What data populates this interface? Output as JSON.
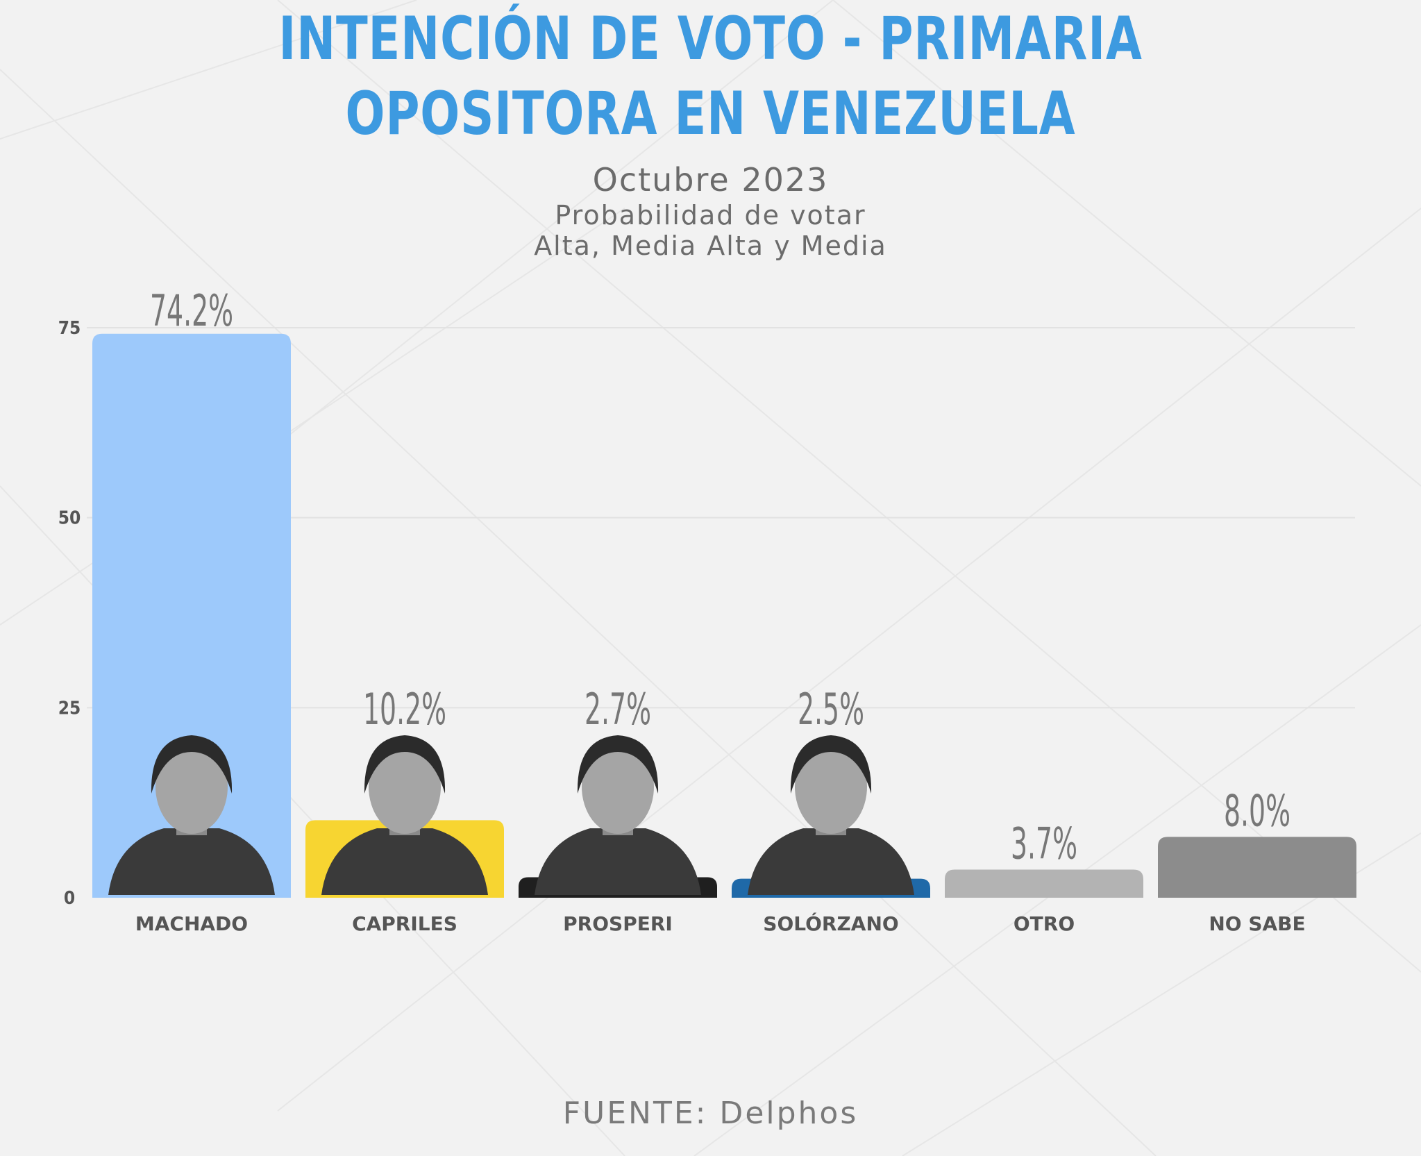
{
  "title_line1": "INTENCIÓN DE VOTO - PRIMARIA",
  "title_line2": "OPOSITORA EN VENEZUELA",
  "subtitle_date": "Octubre 2023",
  "subtitle_line2": "Probabilidad de votar",
  "subtitle_line3": "Alta, Media Alta y Media",
  "source": "FUENTE: Delphos",
  "colors": {
    "title": "#3d9ae0",
    "bars": [
      "#9dc9fb",
      "#f7d531",
      "#1f1f1f",
      "#1f69a8",
      "#b3b3b3",
      "#8c8c8c"
    ]
  },
  "chart_data": {
    "type": "bar",
    "title": "INTENCIÓN DE VOTO - PRIMARIA OPOSITORA EN VENEZUELA",
    "categories": [
      "MACHADO",
      "CAPRILES",
      "PROSPERI",
      "SOLÓRZANO",
      "OTRO",
      "NO SABE"
    ],
    "values": [
      74.2,
      10.2,
      2.7,
      2.5,
      3.7,
      8.0
    ],
    "value_labels": [
      "74.2%",
      "10.2%",
      "2.7%",
      "2.5%",
      "3.7%",
      "8.0%"
    ],
    "yticks": [
      0,
      25,
      50,
      75
    ],
    "ylim": [
      0,
      75
    ],
    "grid": true,
    "photos": [
      "Machado portrait",
      "Capriles portrait",
      "Prosperi portrait",
      "Solórzano portrait",
      "",
      ""
    ]
  }
}
